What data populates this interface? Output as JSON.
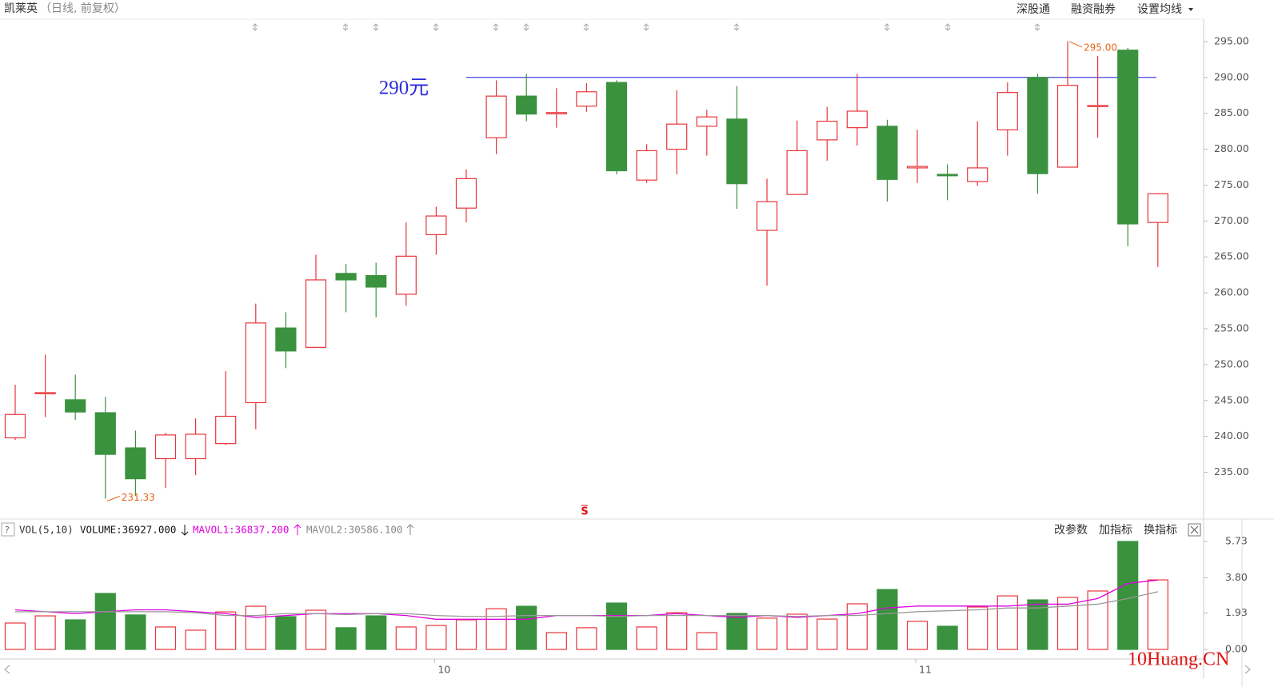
{
  "header": {
    "title": "凯莱英",
    "subtitle": "（日线, 前复权）",
    "buttons": [
      "深股通",
      "融资融券",
      "设置均线"
    ]
  },
  "chart_data": [
    {
      "type": "candlestick",
      "categories": [
        null,
        null,
        null,
        null,
        null,
        null,
        null,
        null,
        null,
        null,
        null,
        null,
        null,
        null,
        "10",
        null,
        null,
        null,
        null,
        null,
        null,
        null,
        null,
        null,
        null,
        null,
        null,
        null,
        null,
        null,
        "11",
        null,
        null,
        null,
        null,
        null,
        null,
        null,
        null
      ],
      "open": [
        239.8,
        246.0,
        245.1,
        243.3,
        238.4,
        236.9,
        236.9,
        239.0,
        244.7,
        255.1,
        252.4,
        262.7,
        262.4,
        259.8,
        268.1,
        271.8,
        281.6,
        287.4,
        285.0,
        286.0,
        289.3,
        275.7,
        280.0,
        283.2,
        284.2,
        268.7,
        273.7,
        281.3,
        283.0,
        283.2,
        277.4,
        276.5,
        275.5,
        282.7,
        290.0,
        277.5,
        286.0,
        293.8,
        269.8
      ],
      "high": [
        247.2,
        251.4,
        248.6,
        245.5,
        240.8,
        240.5,
        242.5,
        249.1,
        258.5,
        257.3,
        265.3,
        264.0,
        264.2,
        269.8,
        272.0,
        277.2,
        289.6,
        290.5,
        288.5,
        289.2,
        289.6,
        280.7,
        288.2,
        285.5,
        288.8,
        275.9,
        284.0,
        285.9,
        290.5,
        284.1,
        282.7,
        277.9,
        283.9,
        289.3,
        290.5,
        295,
        293.0,
        294.1,
        273.9
      ],
      "low": [
        239.5,
        242.7,
        242.3,
        231.33,
        231.7,
        232.8,
        234.6,
        238.8,
        241.0,
        249.5,
        252.4,
        257.3,
        256.6,
        258.2,
        265.3,
        269.8,
        279.3,
        283.9,
        283.0,
        285.2,
        276.5,
        275.3,
        276.5,
        279.1,
        271.7,
        261.0,
        273.7,
        278.4,
        280.5,
        272.7,
        275.3,
        272.9,
        274.9,
        279.1,
        273.8,
        277.5,
        281.6,
        266.5,
        263.6
      ],
      "close": [
        243.05,
        246.1,
        243.4,
        237.5,
        234.1,
        240.2,
        240.3,
        242.8,
        255.8,
        251.9,
        261.8,
        261.8,
        260.8,
        265.1,
        270.7,
        275.9,
        287.4,
        284.9,
        285.1,
        288.0,
        277.0,
        279.8,
        283.5,
        284.5,
        275.2,
        272.7,
        279.8,
        283.9,
        285.3,
        275.8,
        277.6,
        276.3,
        277.4,
        287.9,
        276.6,
        288.9,
        286.1,
        269.6,
        273.8
      ],
      "up_color": "#e8353b",
      "down_color": "#3a923e",
      "ylim": [
        228.6,
        298.0
      ],
      "yticks": [
        {
          "value": 235,
          "label": "235.00"
        },
        {
          "value": 240,
          "label": "240.00"
        },
        {
          "value": 245,
          "label": "245.00"
        },
        {
          "value": 250,
          "label": "250.00"
        },
        {
          "value": 255,
          "label": "255.00"
        },
        {
          "value": 260,
          "label": "260.00"
        },
        {
          "value": 265,
          "label": "265.00"
        },
        {
          "value": 270,
          "label": "270.00"
        },
        {
          "value": 275,
          "label": "275.00"
        },
        {
          "value": 280,
          "label": "280.00"
        },
        {
          "value": 285,
          "label": "285.00"
        },
        {
          "value": 290,
          "label": "290.00"
        },
        {
          "value": 295,
          "label": "295.00"
        }
      ],
      "reference_line": {
        "value": 290,
        "label": "290元",
        "color": "#2b2bdc"
      },
      "extreme_labels": {
        "max": {
          "value": 295,
          "label": "295.00"
        },
        "min": {
          "value": 231.33,
          "label": "231.33"
        },
        "color": "#e8661a"
      },
      "signal": "S"
    },
    {
      "type": "bar",
      "title": "VOL(5,10)",
      "readouts": [
        "VOLUME:36927.000",
        "MAVOL1:36837.200",
        "MAVOL2:30586.100"
      ],
      "buttons": [
        "改参数",
        "加指标",
        "换指标"
      ],
      "series": [
        {
          "values": [
            1.4,
            1.78,
            1.57,
            2.97,
            1.83,
            1.19,
            1.02,
            1.99,
            2.29,
            1.74,
            2.08,
            1.15,
            1.78,
            1.19,
            1.27,
            1.57,
            2.16,
            2.29,
            0.89,
            1.15,
            2.46,
            1.19,
            1.95,
            0.89,
            1.91,
            1.66,
            1.87,
            1.61,
            2.42,
            3.18,
            1.49,
            1.23,
            2.25,
            2.84,
            2.63,
            2.76,
            3.1,
            5.73,
            3.69
          ]
        },
        {
          "color": "#e000e0",
          "values": [
            2.1,
            2.0,
            1.9,
            2.0,
            2.1,
            2.1,
            2.0,
            1.9,
            1.7,
            1.8,
            1.9,
            1.9,
            1.9,
            1.8,
            1.6,
            1.6,
            1.6,
            1.6,
            1.8,
            1.8,
            1.8,
            1.8,
            1.9,
            1.8,
            1.7,
            1.8,
            1.7,
            1.8,
            1.9,
            2.2,
            2.3,
            2.3,
            2.3,
            2.3,
            2.4,
            2.4,
            2.7,
            3.5,
            3.68
          ]
        },
        {
          "color": "#999999",
          "values": [
            2.0,
            2.0,
            2.0,
            2.0,
            2.0,
            2.0,
            1.95,
            1.8,
            1.8,
            1.9,
            1.9,
            1.85,
            1.9,
            1.9,
            1.8,
            1.75,
            1.75,
            1.8,
            1.8,
            1.8,
            1.75,
            1.8,
            1.8,
            1.8,
            1.8,
            1.8,
            1.75,
            1.8,
            1.8,
            1.9,
            2.0,
            2.05,
            2.1,
            2.2,
            2.2,
            2.3,
            2.4,
            2.7,
            3.06
          ]
        }
      ],
      "ylim": [
        0,
        5.94
      ],
      "yticks": [
        {
          "value": 0,
          "label": "0.00"
        },
        {
          "value": 1.93,
          "label": "1.93"
        },
        {
          "value": 3.8,
          "label": "3.80"
        },
        {
          "value": 5.73,
          "label": "5.73"
        }
      ]
    }
  ],
  "watermark": "10Huang.CN"
}
